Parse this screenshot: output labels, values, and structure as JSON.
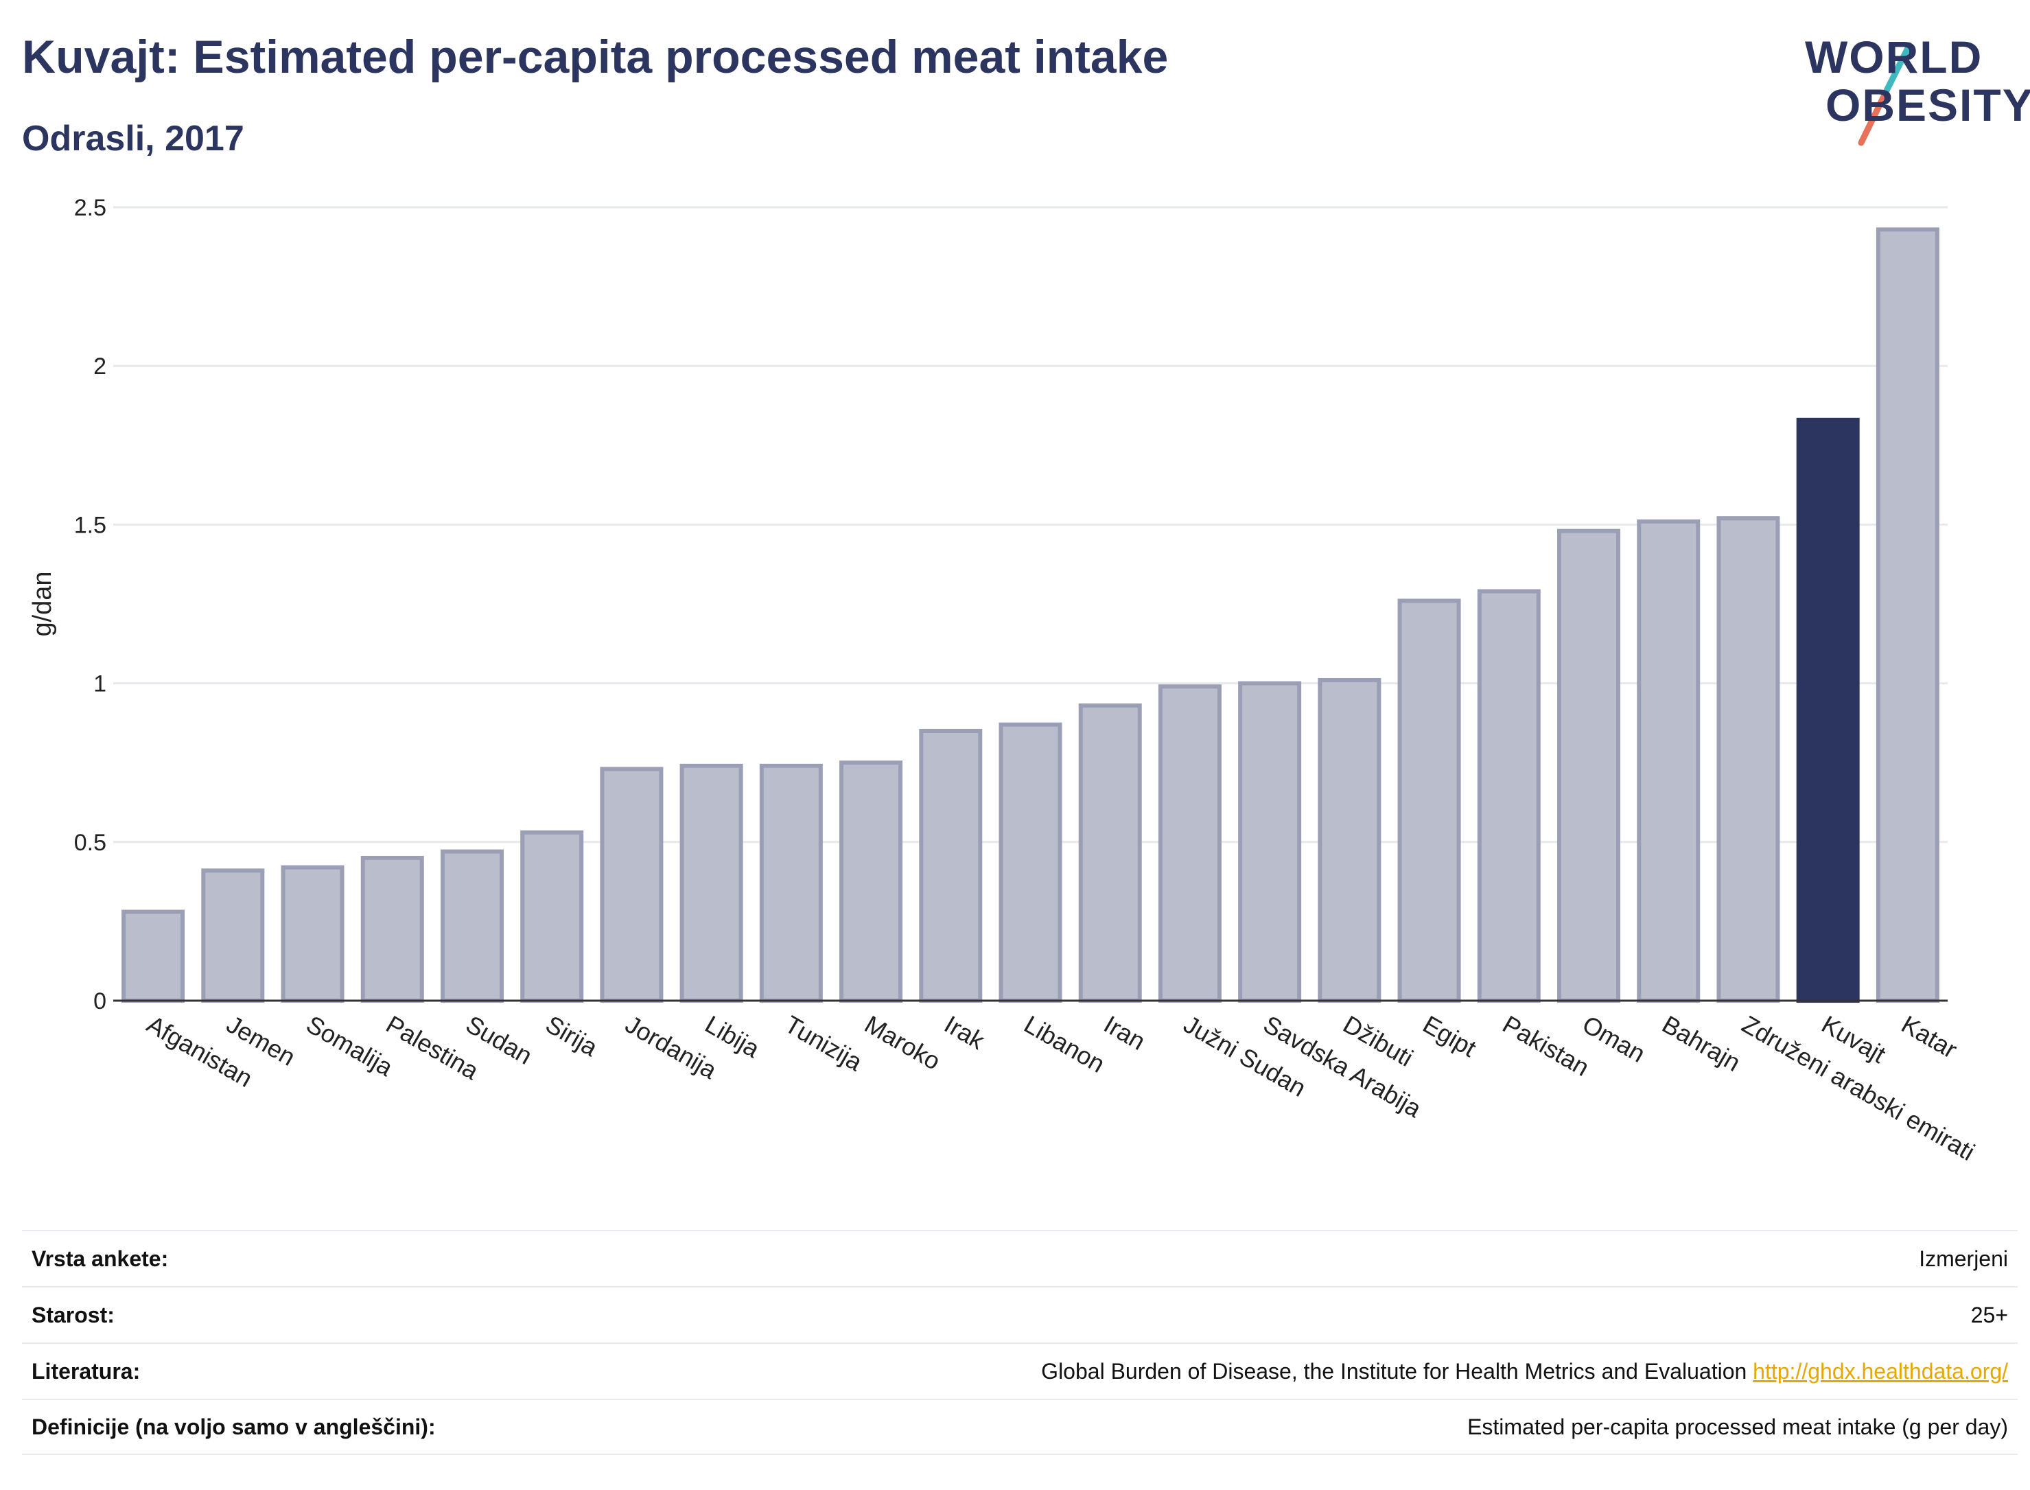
{
  "header": {
    "title": "Kuvajt: Estimated per-capita processed meat intake",
    "subtitle": "Odrasli, 2017"
  },
  "logo": {
    "line1": "WORLD",
    "line2": "OBESITY"
  },
  "colors": {
    "bar": "#b9bdcc",
    "bar_stroke": "#9a9fb6",
    "highlight": "#2b3560",
    "axis": "#333333",
    "grid": "#e6e8ee",
    "logo_slash_top": "#3fb8c0",
    "logo_slash_bottom": "#e8715c"
  },
  "chart_data": {
    "type": "bar",
    "ylabel": "g/dan",
    "ylim": [
      0,
      2.5
    ],
    "yticks": [
      "0",
      "0.5",
      "1",
      "1.5",
      "2",
      "2.5"
    ],
    "grid": true,
    "highlight": "Kuvajt",
    "categories": [
      "Afganistan",
      "Jemen",
      "Somalija",
      "Palestina",
      "Sudan",
      "Sirija",
      "Jordanija",
      "Libija",
      "Tunizija",
      "Maroko",
      "Irak",
      "Libanon",
      "Iran",
      "Južni Sudan",
      "Savdska Arabija",
      "Džibuti",
      "Egipt",
      "Pakistan",
      "Oman",
      "Bahrajn",
      "Združeni arabski emirati",
      "Kuvajt",
      "Katar"
    ],
    "values": [
      0.28,
      0.41,
      0.42,
      0.45,
      0.47,
      0.53,
      0.73,
      0.74,
      0.74,
      0.75,
      0.85,
      0.87,
      0.93,
      0.99,
      1.0,
      1.01,
      1.26,
      1.29,
      1.48,
      1.51,
      1.52,
      1.83,
      2.43
    ]
  },
  "info": {
    "rows": [
      {
        "label": "Vrsta ankete:",
        "value": "Izmerjeni",
        "link": ""
      },
      {
        "label": "Starost:",
        "value": "25+",
        "link": ""
      },
      {
        "label": "Literatura:",
        "value": "Global Burden of Disease, the Institute for Health Metrics and Evaluation",
        "link": "http://ghdx.healthdata.org/"
      },
      {
        "label": "Definicije (na voljo samo v angleščini):",
        "value": "Estimated per-capita processed meat intake (g per day)",
        "link": ""
      }
    ]
  }
}
